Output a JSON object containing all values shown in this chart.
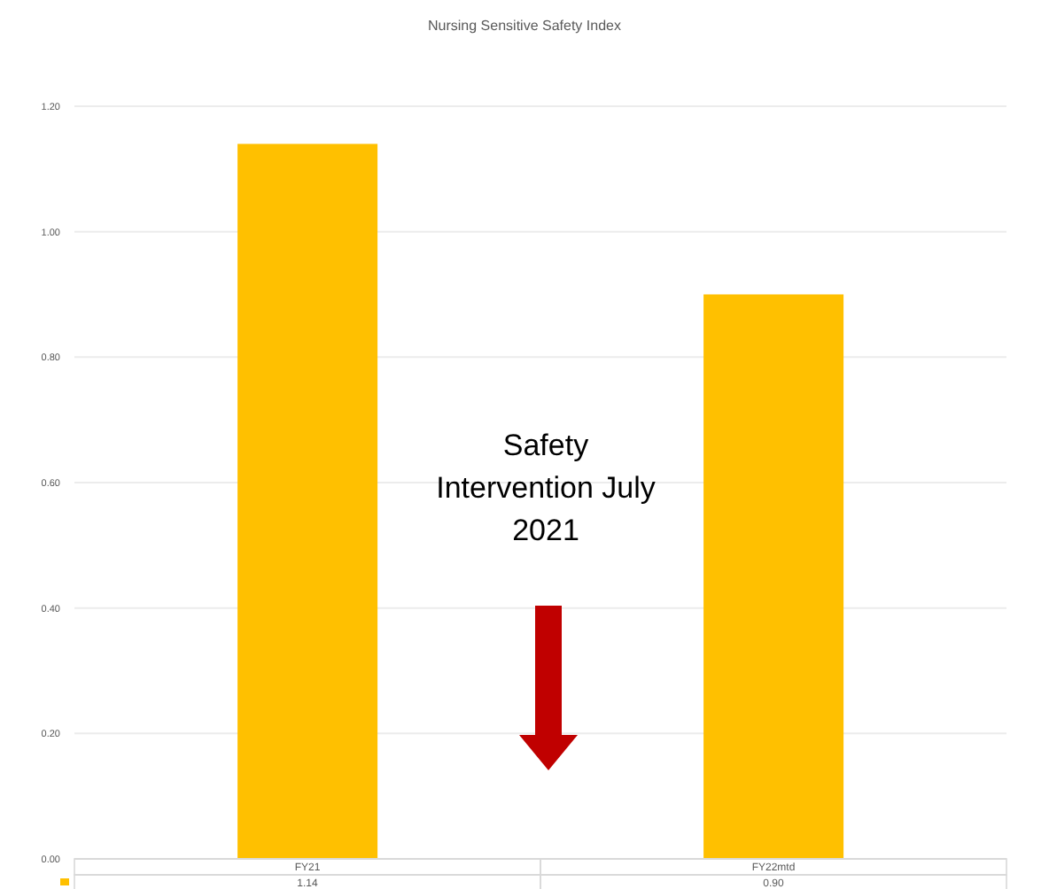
{
  "chart_data": {
    "type": "bar",
    "title": "Nursing Sensitive Safety Index",
    "categories": [
      "FY21",
      "FY22mtd"
    ],
    "series": [
      {
        "color": "#ffc000",
        "values": [
          1.14,
          0.9
        ],
        "value_labels": [
          "1.14",
          "0.90"
        ]
      }
    ],
    "ylim": [
      0,
      1.2
    ],
    "yticks": [
      {
        "value": 0,
        "label": "0.00"
      },
      {
        "value": 0.2,
        "label": "0.20"
      },
      {
        "value": 0.4,
        "label": "0.40"
      },
      {
        "value": 0.6,
        "label": "0.60"
      },
      {
        "value": 0.8,
        "label": "0.80"
      },
      {
        "value": 1,
        "label": "1.00"
      },
      {
        "value": 1.2,
        "label": "1.20"
      }
    ],
    "grid": "y",
    "annotations": [
      "Safety Intervention July 2021"
    ]
  }
}
